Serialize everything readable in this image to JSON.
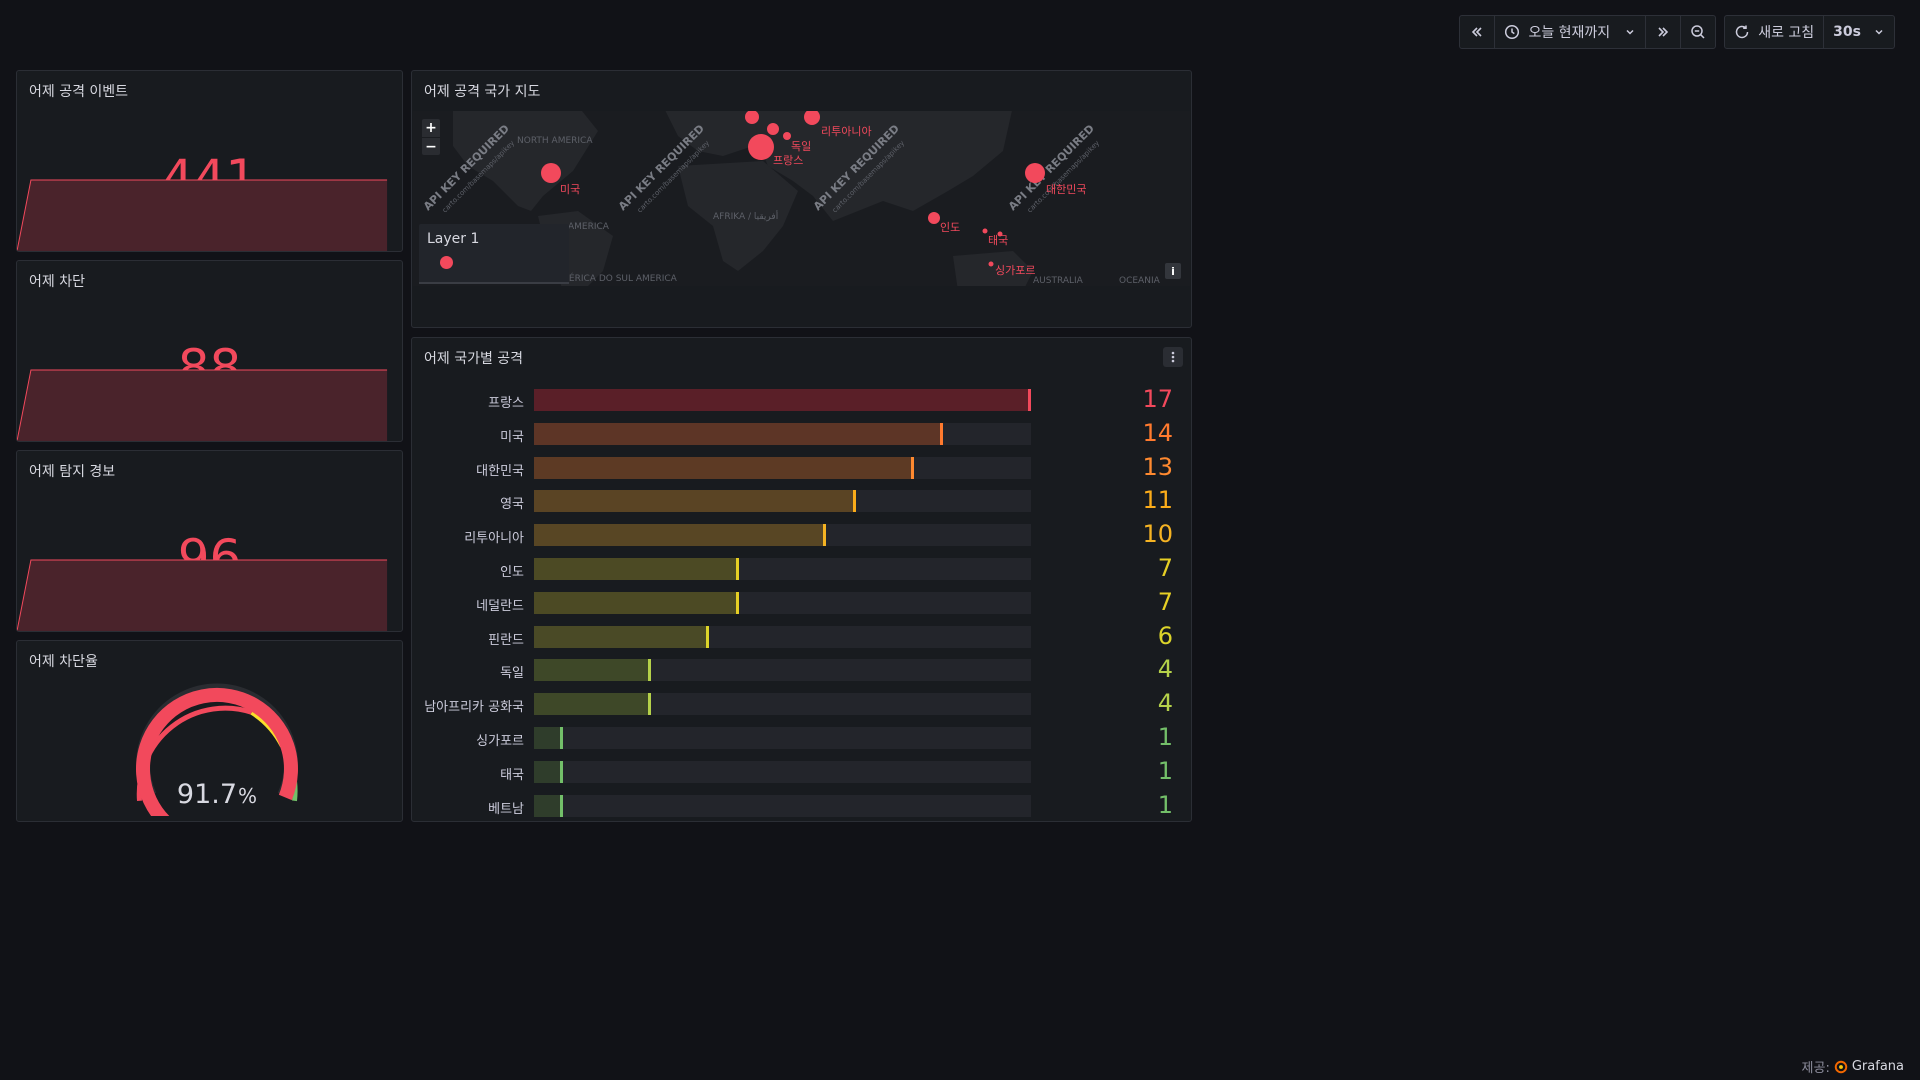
{
  "toolbar": {
    "time_range_label": "오늘 현재까지",
    "refresh_label": "새로 고침",
    "refresh_interval": "30s"
  },
  "stats": [
    {
      "title": "어제 공격 이벤트",
      "value": "441"
    },
    {
      "title": "어제 차단",
      "value": "88"
    },
    {
      "title": "어제 탐지 경보",
      "value": "96"
    }
  ],
  "gauge": {
    "title": "어제 차단율",
    "value": "91.7",
    "unit": "%",
    "percent": 91.7
  },
  "map": {
    "title": "어제 공격 국가 지도",
    "layer_name": "Layer 1",
    "watermark": "API KEY REQUIRED",
    "watermark_sub": "carto.com/basemaps/apikey",
    "geo_labels": [
      "NORTH AMERICA",
      "AMERICA",
      "AMÉRICA DO SUL AMERICA",
      "AFRIKA / أفريقيا",
      "OCEANIA",
      "AUSTRALIA"
    ],
    "points": [
      {
        "name": "미국"
      },
      {
        "name": "리투아니아"
      },
      {
        "name": "독일"
      },
      {
        "name": "프랑스"
      },
      {
        "name": "인도"
      },
      {
        "name": "태국"
      },
      {
        "name": "싱가포르"
      },
      {
        "name": "대한민국"
      }
    ],
    "info_label": "i"
  },
  "country_panel": {
    "title": "어제 국가별 공격",
    "max": 17,
    "rows": [
      {
        "label": "프랑스",
        "value": 17,
        "color": "#f2495c",
        "fill": "#5a1f28"
      },
      {
        "label": "미국",
        "value": 14,
        "color": "#ff7a2e",
        "fill": "#5d3526"
      },
      {
        "label": "대한민국",
        "value": 13,
        "color": "#ff8a30",
        "fill": "#5d3a24"
      },
      {
        "label": "영국",
        "value": 11,
        "color": "#fbac1a",
        "fill": "#5a4424"
      },
      {
        "label": "리투아니아",
        "value": 10,
        "color": "#f5b323",
        "fill": "#584624"
      },
      {
        "label": "인도",
        "value": 7,
        "color": "#e6cf25",
        "fill": "#4c4a24"
      },
      {
        "label": "네덜란드",
        "value": 7,
        "color": "#e6cf25",
        "fill": "#4c4a24"
      },
      {
        "label": "핀란드",
        "value": 6,
        "color": "#dcd42a",
        "fill": "#4a4a26"
      },
      {
        "label": "독일",
        "value": 4,
        "color": "#b5d14a",
        "fill": "#3e4828"
      },
      {
        "label": "남아프리카 공화국",
        "value": 4,
        "color": "#b5d14a",
        "fill": "#3e4828"
      },
      {
        "label": "싱가포르",
        "value": 1,
        "color": "#73bf69",
        "fill": "#2f3d2b"
      },
      {
        "label": "태국",
        "value": 1,
        "color": "#73bf69",
        "fill": "#2f3d2b"
      },
      {
        "label": "베트남",
        "value": 1,
        "color": "#73bf69",
        "fill": "#2f3d2b"
      }
    ]
  },
  "footer": {
    "prefix": "제공:",
    "brand": "Grafana"
  }
}
